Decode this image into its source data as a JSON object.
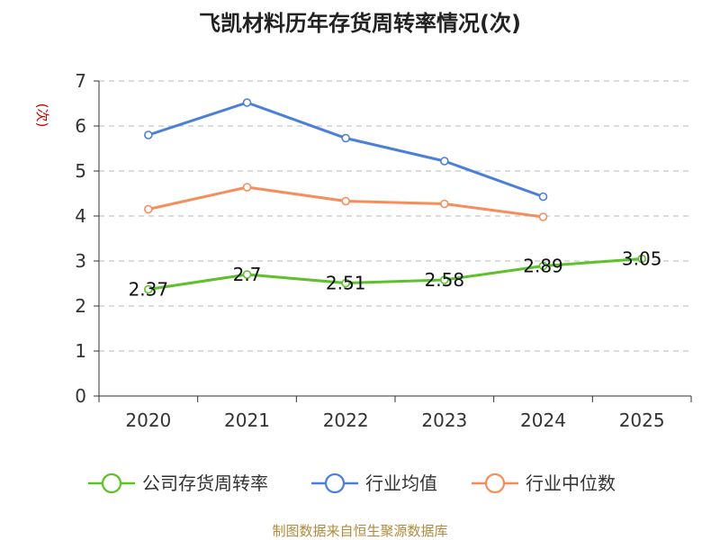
{
  "chart_data": {
    "type": "line",
    "title": "飞凯材料历年存货周转率情况(次)",
    "ylabel": "(次)",
    "xlabel": "",
    "categories": [
      "2020",
      "2021",
      "2022",
      "2023",
      "2024",
      "2025"
    ],
    "ylim": [
      0,
      7
    ],
    "yticks": [
      0,
      1,
      2,
      3,
      4,
      5,
      6,
      7
    ],
    "grid": true,
    "legend_position": "bottom",
    "series": [
      {
        "name": "公司存货周转率",
        "color": "#5cc12b",
        "values": [
          2.37,
          2.7,
          2.51,
          2.58,
          2.89,
          3.05
        ],
        "labels": [
          "2.37",
          "2.7",
          "2.51",
          "2.58",
          "2.89",
          "3.05"
        ]
      },
      {
        "name": "行业均值",
        "color": "#4a7fdc",
        "values": [
          5.8,
          6.52,
          5.73,
          5.22,
          4.43,
          null
        ]
      },
      {
        "name": "行业中位数",
        "color": "#f68d5a",
        "values": [
          4.15,
          4.64,
          4.33,
          4.27,
          3.98,
          null
        ]
      }
    ]
  },
  "footer": {
    "source": "制图数据来自恒生聚源数据库"
  }
}
